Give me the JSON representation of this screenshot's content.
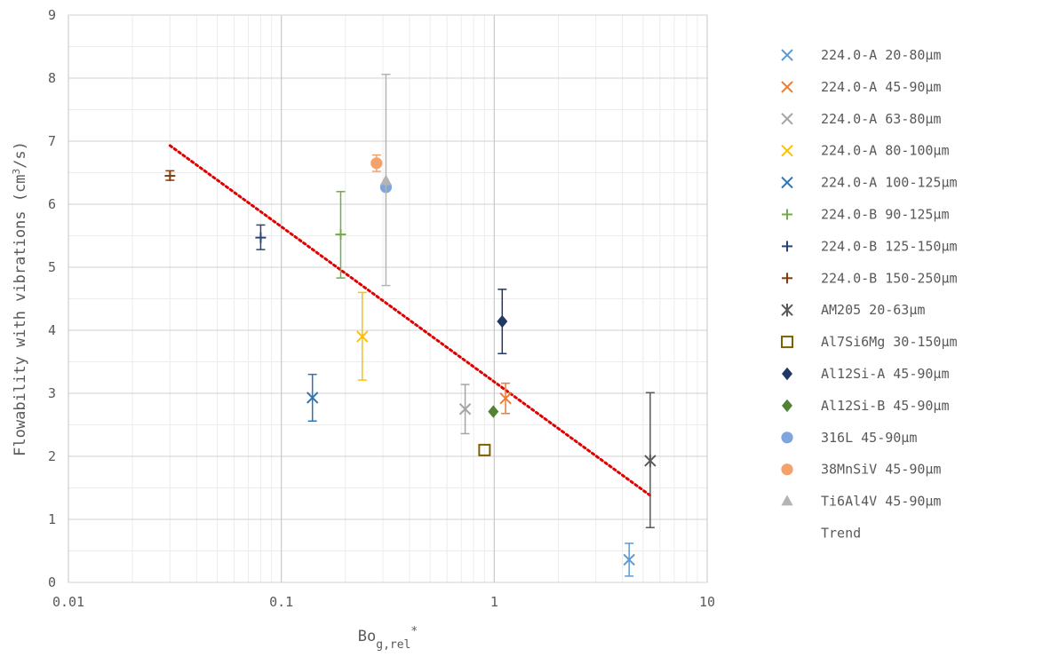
{
  "chart_data": {
    "type": "scatter",
    "x_scale": "log",
    "xlim": [
      0.01,
      10
    ],
    "ylim": [
      0,
      9
    ],
    "x_ticks": [
      "0.01",
      "0.1",
      "1",
      "10"
    ],
    "y_ticks": [
      "0",
      "1",
      "2",
      "3",
      "4",
      "5",
      "6",
      "7",
      "8",
      "9"
    ],
    "xlabel": {
      "main": "Bo",
      "sub": "g,rel",
      "sup": "*"
    },
    "ylabel": {
      "before": "Flowability with vibrations (cm",
      "sup": "3",
      "after": "/s)"
    },
    "grid": true,
    "legend_position": "right",
    "series": [
      {
        "name": "224.0-A 20-80µm",
        "marker": "x",
        "color": "#5B9BD5",
        "points": [
          {
            "x": 4.3,
            "y": 0.36,
            "err_low": 0.1,
            "err_high": 0.62
          }
        ]
      },
      {
        "name": "224.0-A 45-90µm",
        "marker": "x",
        "color": "#ED7D31",
        "points": [
          {
            "x": 1.13,
            "y": 2.92,
            "err_low": 2.68,
            "err_high": 3.16
          }
        ]
      },
      {
        "name": "224.0-A 63-80µm",
        "marker": "x",
        "color": "#A5A5A5",
        "points": [
          {
            "x": 0.73,
            "y": 2.75,
            "err_low": 2.36,
            "err_high": 3.14
          }
        ]
      },
      {
        "name": "224.0-A 80-100µm",
        "marker": "x",
        "color": "#FFC000",
        "points": [
          {
            "x": 0.24,
            "y": 3.9,
            "err_low": 3.21,
            "err_high": 4.6
          }
        ]
      },
      {
        "name": "224.0-A 100-125µm",
        "marker": "x",
        "color": "#2E75B6",
        "points": [
          {
            "x": 0.14,
            "y": 2.93,
            "err_low": 2.56,
            "err_high": 3.3
          }
        ]
      },
      {
        "name": "224.0-B 90-125µm",
        "marker": "plus",
        "color": "#70AD47",
        "points": [
          {
            "x": 0.19,
            "y": 5.52,
            "err_low": 4.83,
            "err_high": 6.2
          }
        ]
      },
      {
        "name": "224.0-B 125-150µm",
        "marker": "plus",
        "color": "#264478",
        "points": [
          {
            "x": 0.08,
            "y": 5.47,
            "err_low": 5.28,
            "err_high": 5.67
          }
        ]
      },
      {
        "name": "224.0-B 150-250µm",
        "marker": "plus",
        "color": "#843C0C",
        "points": [
          {
            "x": 0.03,
            "y": 6.45,
            "err_low": 6.38,
            "err_high": 6.53
          }
        ]
      },
      {
        "name": "AM205 20-63µm",
        "marker": "star",
        "color": "#595959",
        "points": [
          {
            "x": 5.4,
            "y": 1.93,
            "err_low": 0.87,
            "err_high": 3.01
          }
        ]
      },
      {
        "name": "Al7Si6Mg 30-150µm",
        "marker": "square",
        "color": "#7F6000",
        "points": [
          {
            "x": 0.9,
            "y": 2.1
          }
        ]
      },
      {
        "name": "Al12Si-A 45-90µm",
        "marker": "diamond",
        "color": "#203864",
        "points": [
          {
            "x": 1.09,
            "y": 4.14,
            "err_low": 3.63,
            "err_high": 4.65
          }
        ]
      },
      {
        "name": "Al12Si-B 45-90µm",
        "marker": "diamond",
        "color": "#548235",
        "points": [
          {
            "x": 0.99,
            "y": 2.71
          }
        ]
      },
      {
        "name": "316L 45-90µm",
        "marker": "circle",
        "color": "#7EA6DC",
        "points": [
          {
            "x": 0.31,
            "y": 6.27
          }
        ]
      },
      {
        "name": "38MnSiV 45-90µm",
        "marker": "circle",
        "color": "#F4A26C",
        "points": [
          {
            "x": 0.28,
            "y": 6.65,
            "err_low": 6.52,
            "err_high": 6.78
          }
        ]
      },
      {
        "name": "Ti6Al4V 45-90µm",
        "marker": "triangle",
        "color": "#B4B4B4",
        "points": [
          {
            "x": 0.31,
            "y": 6.37,
            "err_low": 4.71,
            "err_high": 8.06
          }
        ]
      }
    ],
    "trend": {
      "name": "Trend",
      "color": "#E00000",
      "style": "dotted",
      "points": [
        {
          "x": 0.03,
          "y": 6.93
        },
        {
          "x": 5.4,
          "y": 1.38
        }
      ]
    }
  }
}
